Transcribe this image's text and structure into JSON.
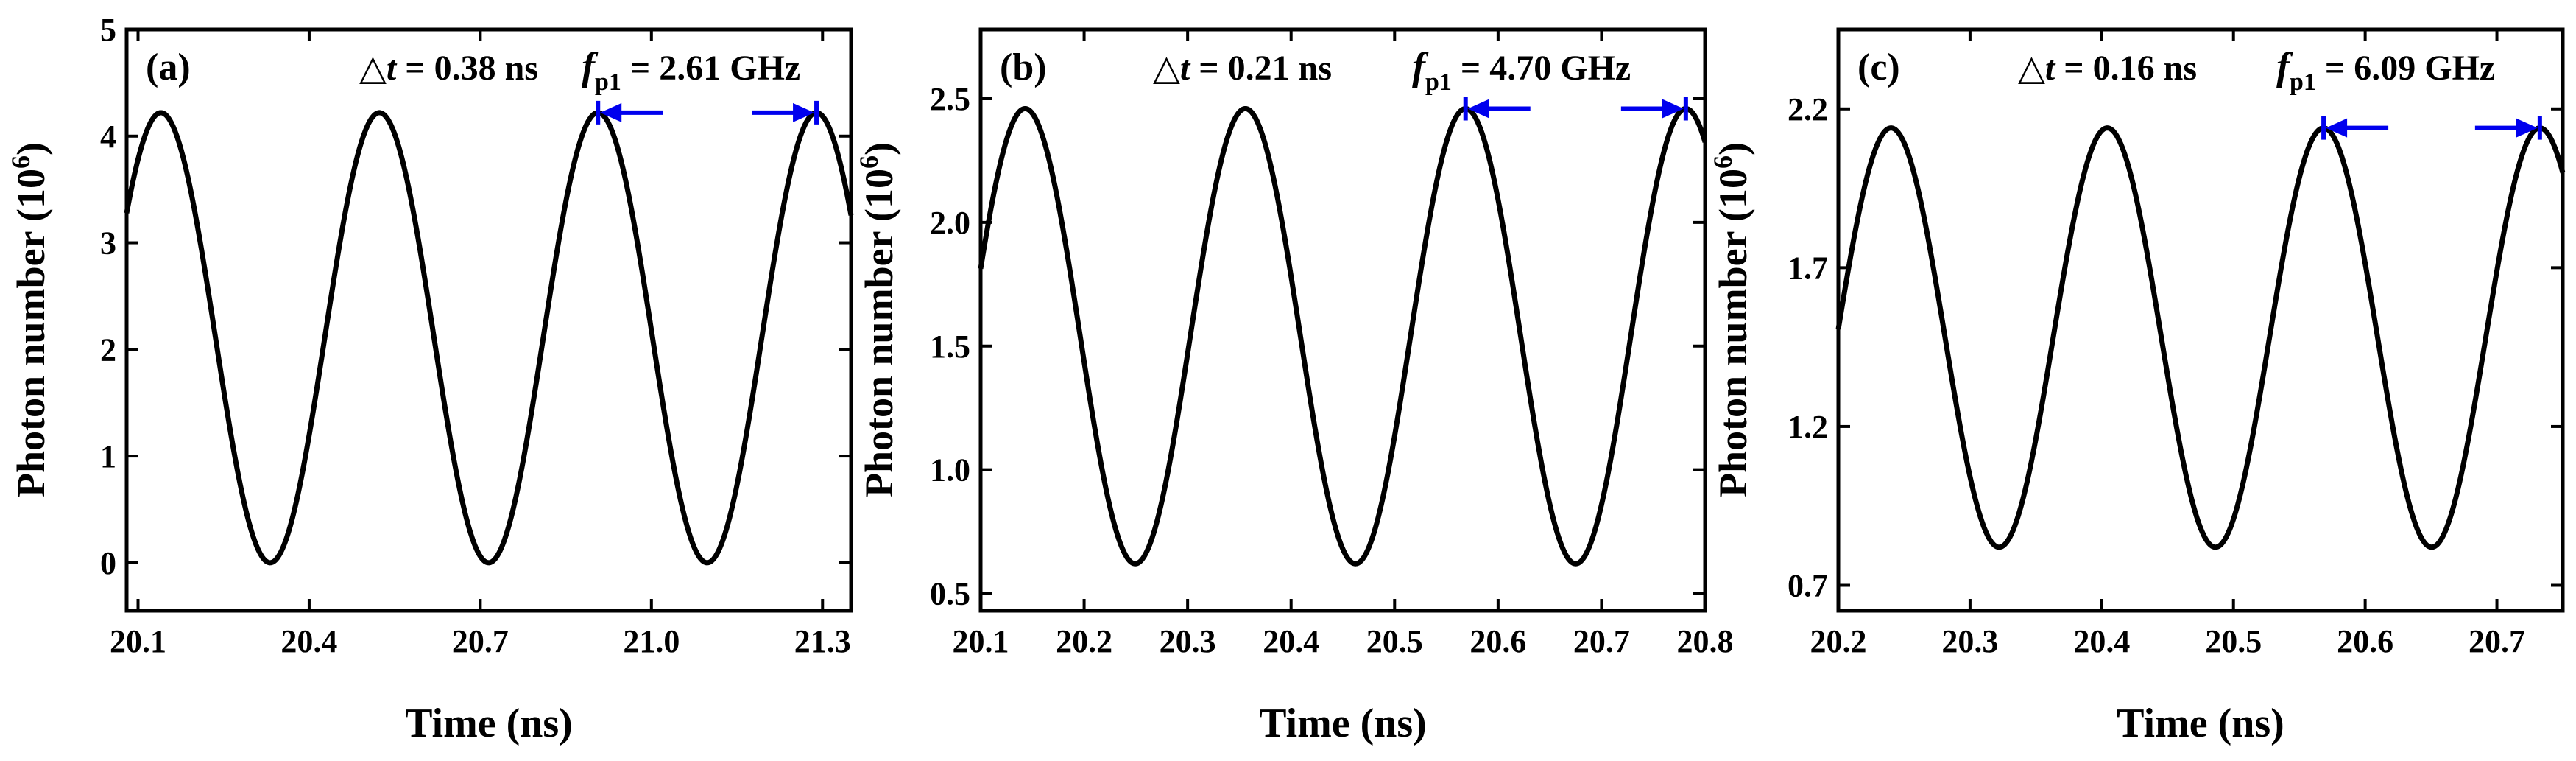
{
  "chart_data": [
    {
      "type": "line",
      "panel_label": "(a)",
      "title": "",
      "xlabel": "Time (ns)",
      "ylabel_main": "Photon number (10",
      "ylabel_sup": "6",
      "ylabel_end": ")",
      "xlim": [
        20.08,
        21.35
      ],
      "ylim": [
        -0.45,
        5.0
      ],
      "xticks": [
        20.1,
        20.4,
        20.7,
        21.0,
        21.3
      ],
      "xtick_labels": [
        "20.1",
        "20.4",
        "20.7",
        "21.0",
        "21.3"
      ],
      "yticks": [
        0,
        1,
        2,
        3,
        4,
        5
      ],
      "ytick_labels": [
        "0",
        "1",
        "2",
        "3",
        "4",
        "5"
      ],
      "delta_t_symbol": "△",
      "delta_t_var": "t",
      "delta_t_value": " = 0.38 ns",
      "freq_var": "f",
      "freq_sub": "p1",
      "freq_value": " = 2.61 GHz",
      "series": [
        {
          "name": "photon number",
          "color": "#000000",
          "min": 0.0,
          "max": 4.22,
          "period_ns": 0.3831,
          "peak_ns": 20.14
        }
      ],
      "marker_peaks": [
        20.9063,
        21.2894
      ],
      "marker_color": "#0000ee"
    },
    {
      "type": "line",
      "panel_label": "(b)",
      "title": "",
      "xlabel": "Time (ns)",
      "ylabel_main": "Photon number (10",
      "ylabel_sup": "6",
      "ylabel_end": ")",
      "xlim": [
        20.1,
        20.8
      ],
      "ylim": [
        0.43,
        2.78
      ],
      "xticks": [
        20.1,
        20.2,
        20.3,
        20.4,
        20.5,
        20.6,
        20.7,
        20.8
      ],
      "xtick_labels": [
        "20.1",
        "20.2",
        "20.3",
        "20.4",
        "20.5",
        "20.6",
        "20.7",
        "20.8"
      ],
      "yticks": [
        0.5,
        1.0,
        1.5,
        2.0,
        2.5
      ],
      "ytick_labels": [
        "0.5",
        "1.0",
        "1.5",
        "2.0",
        "2.5"
      ],
      "delta_t_symbol": "△",
      "delta_t_var": "t",
      "delta_t_value": " = 0.21 ns",
      "freq_var": "f",
      "freq_sub": "p1",
      "freq_value": " = 4.70 GHz",
      "series": [
        {
          "name": "photon number",
          "color": "#000000",
          "min": 0.62,
          "max": 2.46,
          "period_ns": 0.2128,
          "peak_ns": 20.143
        }
      ],
      "marker_peaks": [
        20.5686,
        20.7814
      ],
      "marker_color": "#0000ee"
    },
    {
      "type": "line",
      "panel_label": "(c)",
      "title": "",
      "xlabel": "Time (ns)",
      "ylabel_main": "Photon number (10",
      "ylabel_sup": "6",
      "ylabel_end": ")",
      "xlim": [
        20.2,
        20.75
      ],
      "ylim": [
        0.62,
        2.45
      ],
      "xticks": [
        20.2,
        20.3,
        20.4,
        20.5,
        20.6,
        20.7
      ],
      "xtick_labels": [
        "20.2",
        "20.3",
        "20.4",
        "20.5",
        "20.6",
        "20.7"
      ],
      "yticks": [
        0.7,
        1.2,
        1.7,
        2.2
      ],
      "ytick_labels": [
        "0.7",
        "1.2",
        "1.7",
        "2.2"
      ],
      "delta_t_symbol": "△",
      "delta_t_var": "t",
      "delta_t_value": " = 0.16 ns",
      "freq_var": "f",
      "freq_sub": "p1",
      "freq_value": " = 6.09 GHz",
      "series": [
        {
          "name": "photon number",
          "color": "#000000",
          "min": 0.82,
          "max": 2.14,
          "period_ns": 0.1642,
          "peak_ns": 20.24
        }
      ],
      "marker_peaks": [
        20.5684,
        20.7326
      ],
      "marker_color": "#0000ee"
    }
  ]
}
